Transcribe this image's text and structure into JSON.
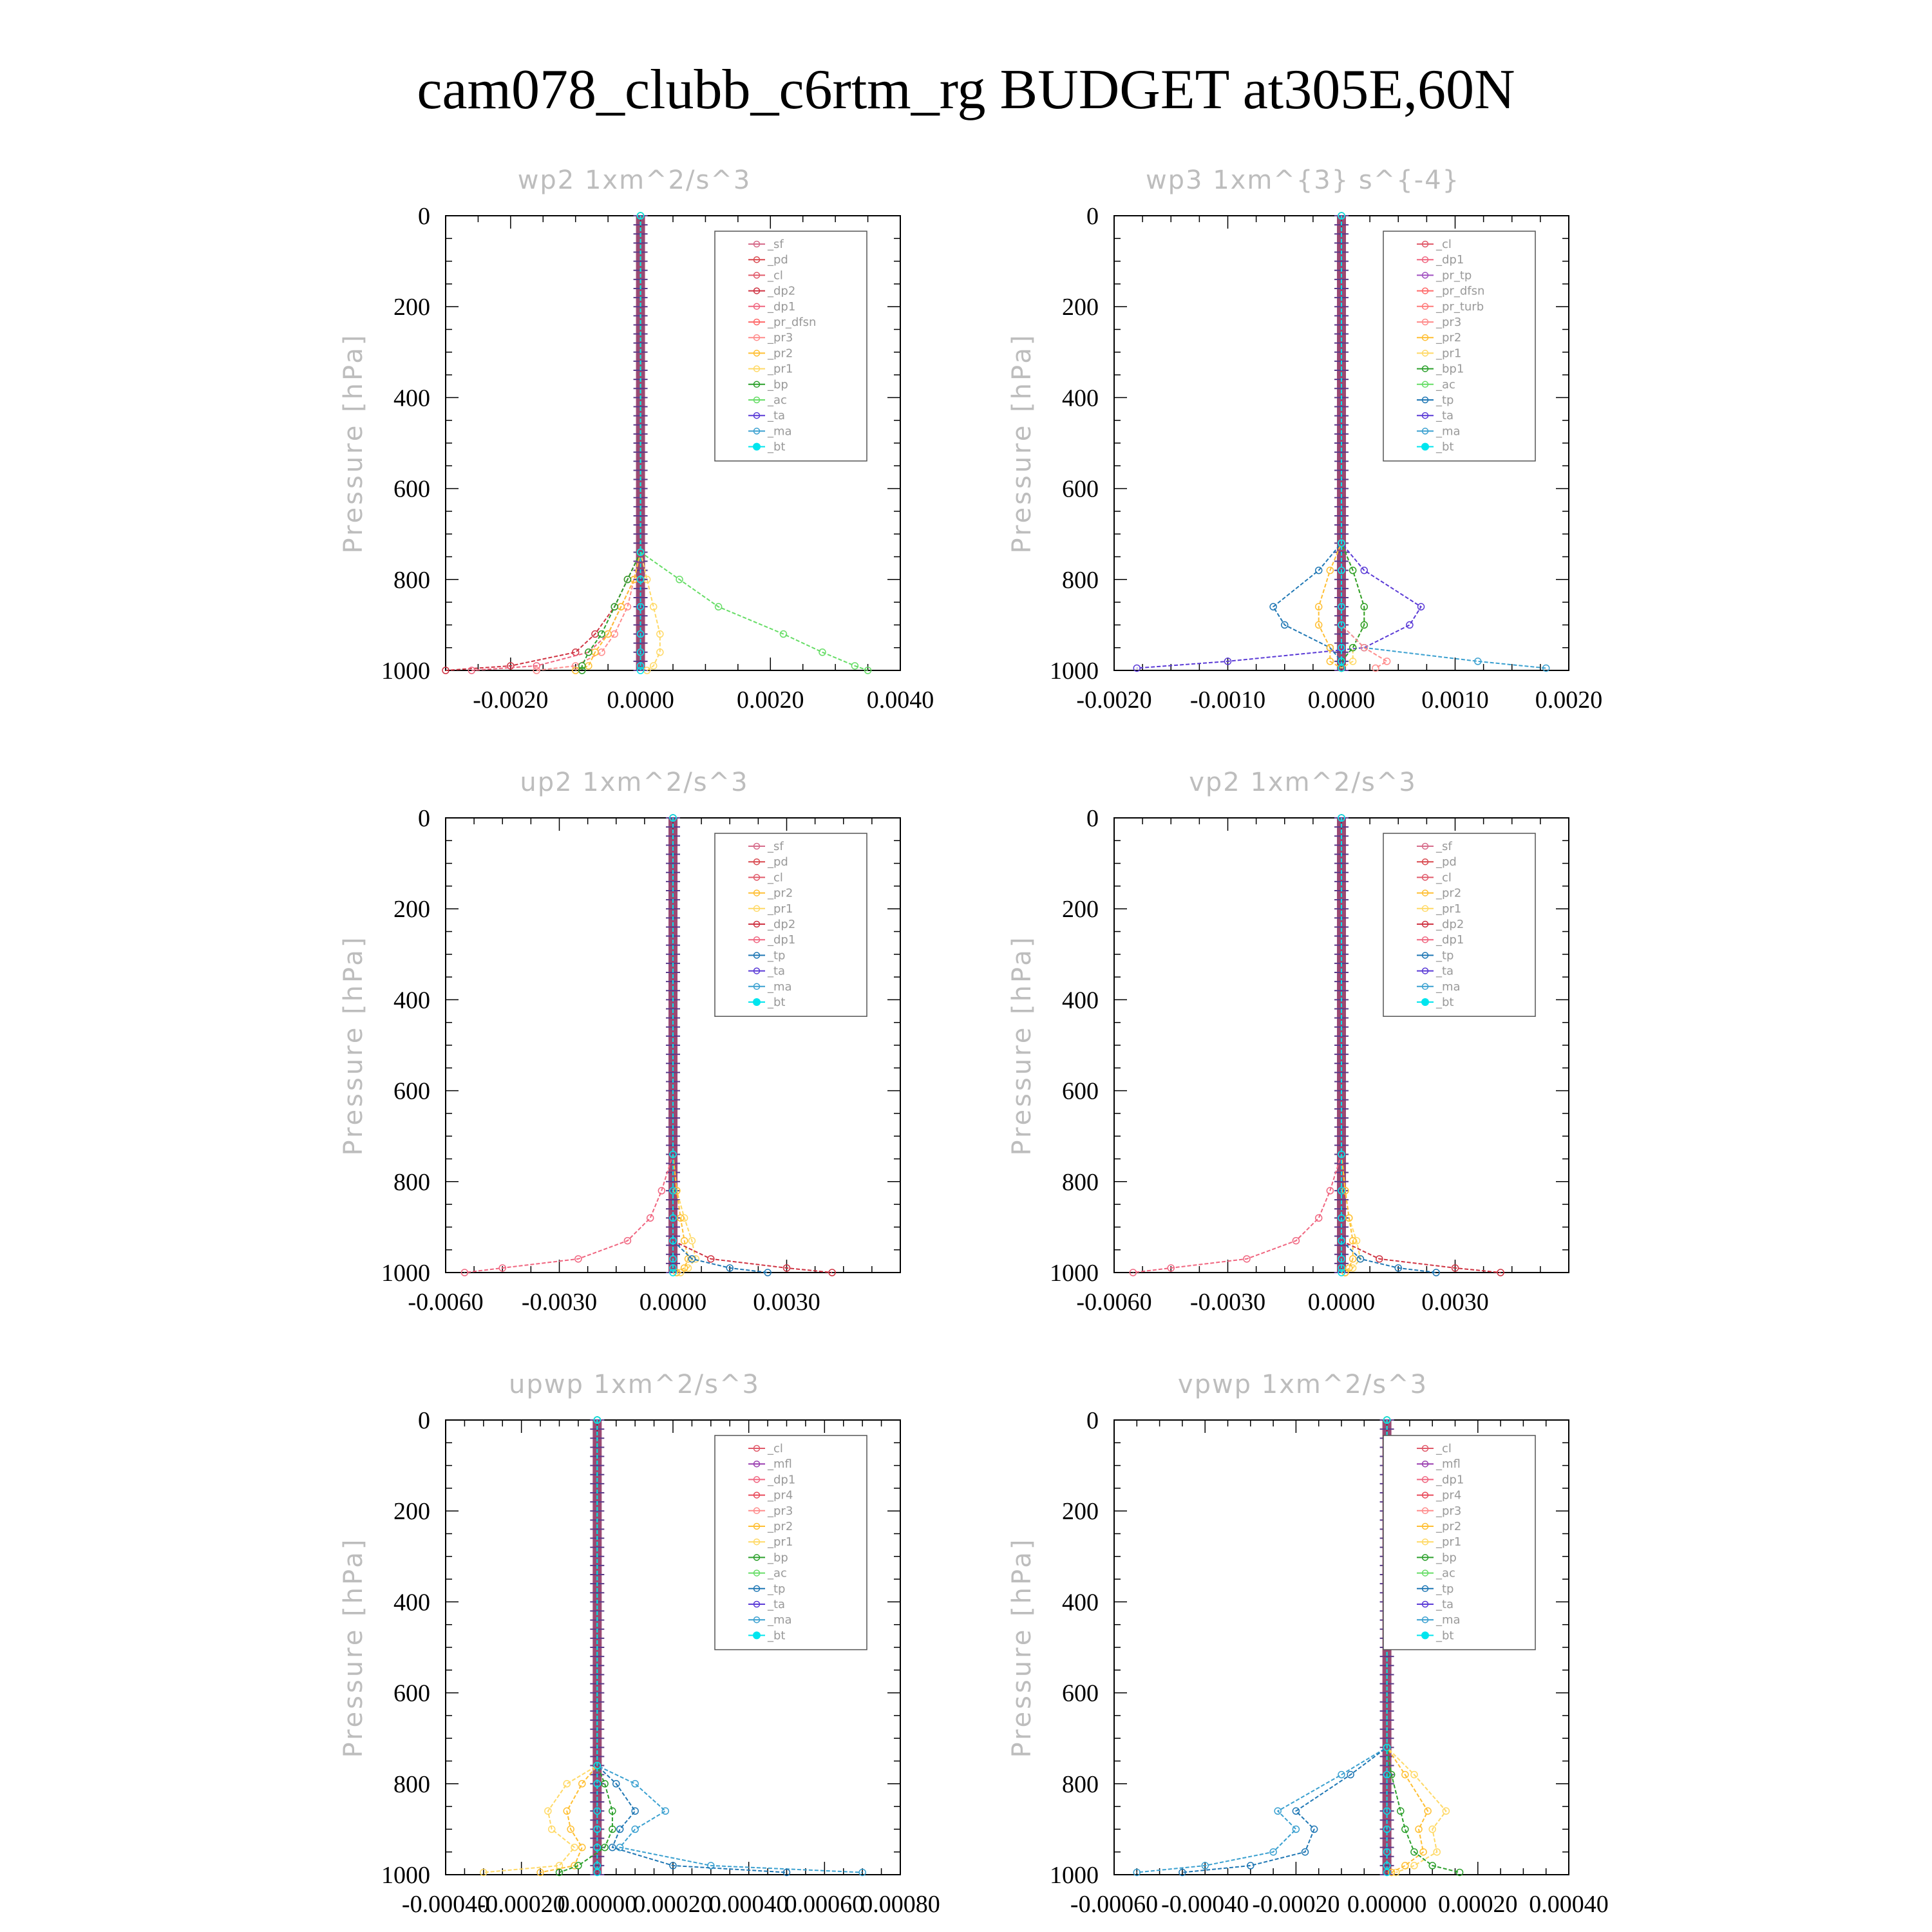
{
  "figure": {
    "title": "cam078_clubb_c6rtm_rg  BUDGET at305E,60N"
  },
  "colors": {
    "_sf": "#d66b8a",
    "_pd": "#d9494f",
    "_cl": "#e05a6a",
    "_dp2": "#cf3342",
    "_dp1": "#f06680",
    "_pr_dfsn": "#ff6a6a",
    "_pr_tp": "#a050c0",
    "_pr_turb": "#ff7a7a",
    "_pr3": "#ff8c8c",
    "_pr2": "#ffbf33",
    "_pr1": "#ffd966",
    "_pr4": "#e84a5a",
    "_bp": "#2ca02c",
    "_bp1": "#2ca02c",
    "_ac": "#66dd66",
    "_tp": "#1f77b4",
    "_ta": "#5a3ad6",
    "_ma": "#3aa0d0",
    "_bt": "#00e5ee",
    "_mfl": "#9a3fb0"
  },
  "chart_data": [
    {
      "type": "line",
      "title": "wp2  1xm^2/s^3",
      "ylabel": "Pressure [hPa]",
      "xlim": [
        -0.003,
        0.004
      ],
      "xticks": [
        -0.002,
        0.0,
        0.002,
        0.004
      ],
      "xtick_labels": [
        "-0.0020",
        "0.0000",
        "0.0020",
        "0.0040"
      ],
      "ylim": [
        1000,
        0
      ],
      "yticks": [
        0,
        200,
        400,
        600,
        800,
        1000
      ],
      "legend_position": "top-right",
      "legend": [
        "_sf",
        "_pd",
        "_cl",
        "_dp2",
        "_dp1",
        "_pr_dfsn",
        "_pr3",
        "_pr2",
        "_pr1",
        "_bp",
        "_ac",
        "_ta",
        "_ma",
        "_bt"
      ],
      "pressure": [
        0,
        740,
        800,
        860,
        920,
        960,
        990,
        1000
      ],
      "series": [
        {
          "name": "_dp2",
          "values": [
            0,
            0,
            -0.0002,
            -0.0004,
            -0.0007,
            -0.001,
            -0.002,
            -0.003
          ]
        },
        {
          "name": "_dp1",
          "values": [
            0,
            0,
            -0.0001,
            -0.0003,
            -0.0005,
            -0.0008,
            -0.0016,
            -0.0026
          ]
        },
        {
          "name": "_pr3",
          "values": [
            0,
            0,
            -0.0001,
            -0.0002,
            -0.0004,
            -0.0006,
            -0.001,
            -0.0016
          ]
        },
        {
          "name": "_pr2",
          "values": [
            0,
            0,
            -0.0001,
            -0.0003,
            -0.0005,
            -0.0007,
            -0.0008,
            -0.001
          ]
        },
        {
          "name": "_pr1",
          "values": [
            0,
            0,
            0.0001,
            0.0002,
            0.0003,
            0.0003,
            0.0002,
            0.0001
          ]
        },
        {
          "name": "_bp",
          "values": [
            0,
            0,
            -0.0002,
            -0.0004,
            -0.0006,
            -0.0008,
            -0.0009,
            -0.0009
          ]
        },
        {
          "name": "_ac",
          "values": [
            0,
            0,
            0.0006,
            0.0012,
            0.0022,
            0.0028,
            0.0033,
            0.0035
          ]
        },
        {
          "name": "_bt",
          "values": [
            0,
            0,
            0,
            0,
            0,
            0,
            0,
            0
          ]
        }
      ]
    },
    {
      "type": "line",
      "title": "wp3  1xm^{3} s^{-4}",
      "ylabel": "Pressure [hPa]",
      "xlim": [
        -0.002,
        0.002
      ],
      "xticks": [
        -0.002,
        -0.001,
        0.0,
        0.001,
        0.002
      ],
      "xtick_labels": [
        "-0.0020",
        "-0.0010",
        "0.0000",
        "0.0010",
        "0.0020"
      ],
      "ylim": [
        1000,
        0
      ],
      "yticks": [
        0,
        200,
        400,
        600,
        800,
        1000
      ],
      "legend_position": "top-right",
      "legend": [
        "_cl",
        "_dp1",
        "_pr_tp",
        "_pr_dfsn",
        "_pr_turb",
        "_pr3",
        "_pr2",
        "_pr1",
        "_bp1",
        "_ac",
        "_tp",
        "_ta",
        "_ma",
        "_bt"
      ],
      "pressure": [
        0,
        720,
        780,
        860,
        900,
        950,
        980,
        995
      ],
      "series": [
        {
          "name": "_tp",
          "values": [
            0,
            0,
            -0.0002,
            -0.0006,
            -0.0005,
            -0.0001,
            0.0,
            0.0
          ]
        },
        {
          "name": "_ta",
          "values": [
            0,
            0,
            0.0002,
            0.0007,
            0.0006,
            0.0002,
            -0.001,
            -0.0018
          ]
        },
        {
          "name": "_ma",
          "values": [
            0,
            0,
            0,
            0,
            0,
            0.0002,
            0.0012,
            0.0018
          ]
        },
        {
          "name": "_pr2",
          "values": [
            0,
            0,
            -0.0001,
            -0.0002,
            -0.0002,
            -0.0001,
            -0.0001,
            0.0
          ]
        },
        {
          "name": "_pr1",
          "values": [
            0,
            0,
            0.0001,
            0.0002,
            0.0002,
            0.0001,
            0.0001,
            0.0
          ]
        },
        {
          "name": "_bp1",
          "values": [
            0,
            0,
            0.0001,
            0.0002,
            0.0002,
            0.0001,
            0.0,
            0.0
          ]
        },
        {
          "name": "_pr3",
          "values": [
            0,
            0,
            0,
            0,
            0,
            0.0002,
            0.0004,
            0.0003
          ]
        },
        {
          "name": "_bt",
          "values": [
            0,
            0,
            0,
            0,
            0,
            0,
            0,
            0
          ]
        }
      ]
    },
    {
      "type": "line",
      "title": "up2  1xm^2/s^3",
      "ylabel": "Pressure [hPa]",
      "xlim": [
        -0.006,
        0.006
      ],
      "xticks": [
        -0.006,
        -0.003,
        0.0,
        0.003
      ],
      "xtick_labels": [
        "-0.0060",
        "-0.0030",
        "0.0000",
        "0.0030"
      ],
      "ylim": [
        1000,
        0
      ],
      "yticks": [
        0,
        200,
        400,
        600,
        800,
        1000
      ],
      "legend_position": "top-right",
      "legend": [
        "_sf",
        "_pd",
        "_cl",
        "_pr2",
        "_pr1",
        "_dp2",
        "_dp1",
        "_tp",
        "_ta",
        "_ma",
        "_bt"
      ],
      "pressure": [
        0,
        740,
        820,
        880,
        930,
        970,
        990,
        1000
      ],
      "series": [
        {
          "name": "_dp1",
          "values": [
            0,
            0,
            -0.0003,
            -0.0006,
            -0.0012,
            -0.0025,
            -0.0045,
            -0.0055
          ]
        },
        {
          "name": "_pr1",
          "values": [
            0,
            0,
            0.0001,
            0.0003,
            0.0005,
            0.0006,
            0.0004,
            0.0002
          ]
        },
        {
          "name": "_pr2",
          "values": [
            0,
            0,
            0.0001,
            0.0002,
            0.0003,
            0.0004,
            0.0003,
            0.0001
          ]
        },
        {
          "name": "_dp2",
          "values": [
            0,
            0,
            0,
            0,
            0,
            0.001,
            0.003,
            0.0042
          ]
        },
        {
          "name": "_tp",
          "values": [
            0,
            0,
            0,
            0,
            0,
            0.0005,
            0.0015,
            0.0025
          ]
        },
        {
          "name": "_bt",
          "values": [
            0,
            0,
            0,
            0,
            0,
            0,
            0,
            0
          ]
        }
      ]
    },
    {
      "type": "line",
      "title": "vp2  1xm^2/s^3",
      "ylabel": "Pressure [hPa]",
      "xlim": [
        -0.006,
        0.006
      ],
      "xticks": [
        -0.006,
        -0.003,
        0.0,
        0.003
      ],
      "xtick_labels": [
        "-0.0060",
        "-0.0030",
        "0.0000",
        "0.0030"
      ],
      "ylim": [
        1000,
        0
      ],
      "yticks": [
        0,
        200,
        400,
        600,
        800,
        1000
      ],
      "legend_position": "top-right",
      "legend": [
        "_sf",
        "_pd",
        "_cl",
        "_pr2",
        "_pr1",
        "_dp2",
        "_dp1",
        "_tp",
        "_ta",
        "_ma",
        "_bt"
      ],
      "pressure": [
        0,
        740,
        820,
        880,
        930,
        970,
        990,
        1000
      ],
      "series": [
        {
          "name": "_dp1",
          "values": [
            0,
            0,
            -0.0003,
            -0.0006,
            -0.0012,
            -0.0025,
            -0.0045,
            -0.0055
          ]
        },
        {
          "name": "_pr1",
          "values": [
            0,
            0,
            0.0001,
            0.0002,
            0.0004,
            0.0005,
            0.0003,
            0.0001
          ]
        },
        {
          "name": "_pr2",
          "values": [
            0,
            0,
            0.0001,
            0.0002,
            0.0003,
            0.0003,
            0.0002,
            0.0001
          ]
        },
        {
          "name": "_dp2",
          "values": [
            0,
            0,
            0,
            0,
            0,
            0.001,
            0.003,
            0.0042
          ]
        },
        {
          "name": "_tp",
          "values": [
            0,
            0,
            0,
            0,
            0,
            0.0005,
            0.0015,
            0.0025
          ]
        },
        {
          "name": "_bt",
          "values": [
            0,
            0,
            0,
            0,
            0,
            0,
            0,
            0
          ]
        }
      ]
    },
    {
      "type": "line",
      "title": "upwp  1xm^2/s^3",
      "ylabel": "Pressure [hPa]",
      "xlim": [
        -0.0004,
        0.0008
      ],
      "xticks": [
        -0.0004,
        -0.0002,
        0.0,
        0.0002,
        0.0004,
        0.0006,
        0.0008
      ],
      "xtick_labels": [
        "-0.00040",
        "-0.00020",
        "0.00000",
        "0.00020",
        "0.00040",
        "0.00060",
        "0.00080"
      ],
      "ylim": [
        1000,
        0
      ],
      "yticks": [
        0,
        200,
        400,
        600,
        800,
        1000
      ],
      "legend_position": "top-right",
      "legend": [
        "_cl",
        "_mfl",
        "_dp1",
        "_pr4",
        "_pr3",
        "_pr2",
        "_pr1",
        "_bp",
        "_ac",
        "_tp",
        "_ta",
        "_ma",
        "_bt"
      ],
      "pressure": [
        0,
        760,
        800,
        860,
        900,
        940,
        980,
        995
      ],
      "series": [
        {
          "name": "_pr1",
          "values": [
            0,
            0,
            -8e-05,
            -0.00013,
            -0.00012,
            -6e-05,
            -0.0001,
            -0.0003
          ]
        },
        {
          "name": "_pr2",
          "values": [
            0,
            0,
            -4e-05,
            -8e-05,
            -7e-05,
            -4e-05,
            -6e-05,
            -0.00015
          ]
        },
        {
          "name": "_ma",
          "values": [
            0,
            0,
            0.0001,
            0.00018,
            0.0001,
            6e-05,
            0.0003,
            0.0007
          ]
        },
        {
          "name": "_tp",
          "values": [
            0,
            0,
            5e-05,
            0.0001,
            6e-05,
            4e-05,
            0.0002,
            0.0005
          ]
        },
        {
          "name": "_bp",
          "values": [
            0,
            0,
            2e-05,
            4e-05,
            4e-05,
            2e-05,
            -5e-05,
            -0.0001
          ]
        },
        {
          "name": "_bt",
          "values": [
            0,
            0,
            0,
            0,
            0,
            0,
            0,
            0
          ]
        }
      ]
    },
    {
      "type": "line",
      "title": "vpwp  1xm^2/s^3",
      "ylabel": "Pressure [hPa]",
      "xlim": [
        -0.0006,
        0.0004
      ],
      "xticks": [
        -0.0006,
        -0.0004,
        -0.0002,
        0.0,
        0.0002,
        0.0004
      ],
      "xtick_labels": [
        "-0.00060",
        "-0.00040",
        "-0.00020",
        "0.00000",
        "0.00020",
        "0.00040"
      ],
      "ylim": [
        1000,
        0
      ],
      "yticks": [
        0,
        200,
        400,
        600,
        800,
        1000
      ],
      "legend_position": "top-right",
      "legend": [
        "_cl",
        "_mfl",
        "_dp1",
        "_pr4",
        "_pr3",
        "_pr2",
        "_pr1",
        "_bp",
        "_ac",
        "_tp",
        "_ta",
        "_ma",
        "_bt"
      ],
      "pressure": [
        0,
        720,
        780,
        860,
        900,
        950,
        980,
        995
      ],
      "series": [
        {
          "name": "_ma",
          "values": [
            0,
            0,
            -0.0001,
            -0.00024,
            -0.0002,
            -0.00025,
            -0.0004,
            -0.00055
          ]
        },
        {
          "name": "_tp",
          "values": [
            0,
            0,
            -8e-05,
            -0.0002,
            -0.00016,
            -0.00018,
            -0.0003,
            -0.00045
          ]
        },
        {
          "name": "_pr1",
          "values": [
            0,
            0,
            6e-05,
            0.00013,
            0.0001,
            0.00011,
            6e-05,
            2e-05
          ]
        },
        {
          "name": "_pr2",
          "values": [
            0,
            0,
            4e-05,
            9e-05,
            7e-05,
            8e-05,
            4e-05,
            1e-05
          ]
        },
        {
          "name": "_bp",
          "values": [
            0,
            0,
            1e-05,
            3e-05,
            4e-05,
            6e-05,
            0.0001,
            0.00016
          ]
        },
        {
          "name": "_bt",
          "values": [
            0,
            0,
            0,
            0,
            0,
            0,
            0,
            0
          ]
        }
      ]
    }
  ]
}
